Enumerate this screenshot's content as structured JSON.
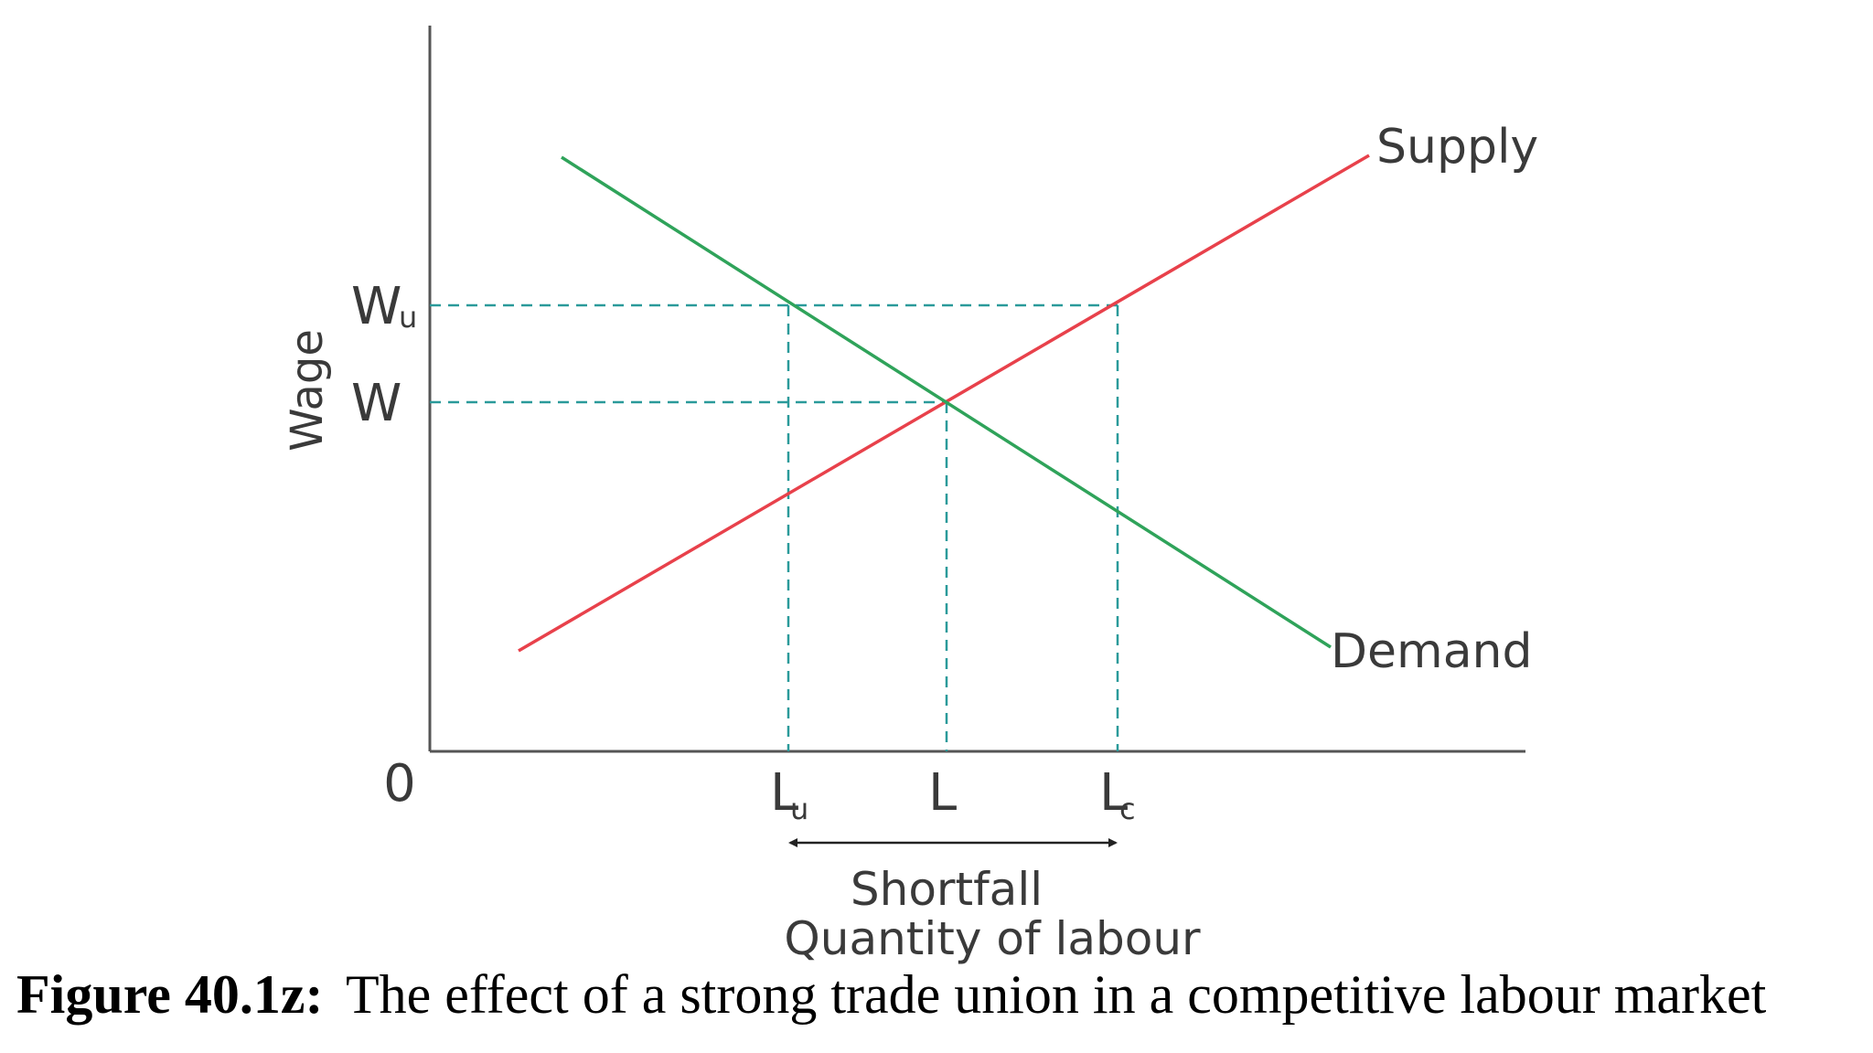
{
  "chart_data": {
    "type": "line",
    "ylabel": "Wage",
    "xlabel": "Quantity of labour",
    "origin_label": "0",
    "y_ticks": [
      {
        "main": "W",
        "sub": "u"
      },
      {
        "main": "W",
        "sub": ""
      }
    ],
    "x_ticks": [
      {
        "main": "L",
        "sub": "u"
      },
      {
        "main": "L",
        "sub": ""
      },
      {
        "main": "L",
        "sub": "c"
      }
    ],
    "series": [
      {
        "name": "Supply",
        "color": "#e8414b"
      },
      {
        "name": "Demand",
        "color": "#2fa35a"
      }
    ],
    "guide_color": "#2a9a9a",
    "annotation": "Shortfall",
    "grid": false
  },
  "caption": {
    "label": "Figure 40.1z:",
    "text": "The effect of a strong trade union in a competitive labour market"
  }
}
